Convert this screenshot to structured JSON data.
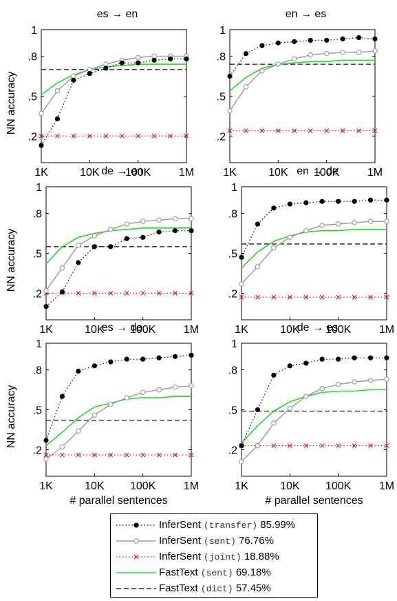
{
  "chart_data": {
    "type": "line",
    "x_categories": [
      "1K",
      "2K",
      "5K",
      "10K",
      "20K",
      "50K",
      "100K",
      "200K",
      "500K",
      "1M"
    ],
    "x_tick_labels": [
      "1K",
      "10K",
      "100K",
      "1M"
    ],
    "y_tick_labels": [
      "1",
      ".8",
      ".5",
      ".2"
    ],
    "ylim": [
      0,
      1
    ],
    "xlabel": "# parallel sentences",
    "ylabel": "NN accuracy",
    "legend_placement": "bottom-center",
    "colors": {
      "transfer": "#000000",
      "sent": "#999999",
      "joint": "#e0141e",
      "fasttext_sent": "#22dd22",
      "fasttext_dict": "#000000"
    },
    "legend": [
      {
        "key": "transfer",
        "name": "InferSent",
        "tag": "(transfer)",
        "value": "85.99%"
      },
      {
        "key": "sent",
        "name": "InferSent",
        "tag": "(sent)",
        "value": "76.76%"
      },
      {
        "key": "joint",
        "name": "InferSent",
        "tag": "(joint)",
        "value": "18.88%"
      },
      {
        "key": "fasttext_sent",
        "name": "FastText",
        "tag": "(sent)",
        "value": "69.18%"
      },
      {
        "key": "fasttext_dict",
        "name": "FastText",
        "tag": "(dict)",
        "value": "57.45%"
      }
    ],
    "panels": [
      {
        "title": "es → en",
        "series": {
          "transfer": [
            0.13,
            0.33,
            0.62,
            0.67,
            0.71,
            0.75,
            0.75,
            0.77,
            0.78,
            0.78
          ],
          "sent": [
            0.37,
            0.54,
            0.65,
            0.7,
            0.74,
            0.77,
            0.79,
            0.8,
            0.8,
            0.8
          ],
          "joint": [
            0.2,
            0.2,
            0.2,
            0.2,
            0.2,
            0.2,
            0.2,
            0.2,
            0.2,
            0.2
          ],
          "fasttext_sent": [
            0.51,
            0.6,
            0.66,
            0.7,
            0.72,
            0.73,
            0.74,
            0.74,
            0.74,
            0.74
          ],
          "fasttext_dict": 0.7
        }
      },
      {
        "title": "en → es",
        "series": {
          "transfer": [
            0.65,
            0.82,
            0.88,
            0.9,
            0.91,
            0.92,
            0.92,
            0.93,
            0.94,
            0.93
          ],
          "sent": [
            0.39,
            0.57,
            0.69,
            0.74,
            0.78,
            0.81,
            0.82,
            0.83,
            0.83,
            0.84
          ],
          "joint": [
            0.24,
            0.24,
            0.24,
            0.24,
            0.24,
            0.24,
            0.24,
            0.24,
            0.24,
            0.24
          ],
          "fasttext_sent": [
            0.54,
            0.64,
            0.71,
            0.74,
            0.75,
            0.76,
            0.76,
            0.77,
            0.77,
            0.77
          ],
          "fasttext_dict": 0.74
        }
      },
      {
        "title": "de → en",
        "series": {
          "transfer": [
            0.1,
            0.21,
            0.43,
            0.55,
            0.55,
            0.61,
            0.62,
            0.66,
            0.67,
            0.67
          ],
          "sent": [
            0.22,
            0.39,
            0.56,
            0.63,
            0.68,
            0.72,
            0.74,
            0.75,
            0.76,
            0.76
          ],
          "joint": [
            0.2,
            0.2,
            0.2,
            0.2,
            0.2,
            0.2,
            0.2,
            0.2,
            0.2,
            0.2
          ],
          "fasttext_sent": [
            0.42,
            0.55,
            0.62,
            0.65,
            0.67,
            0.68,
            0.69,
            0.69,
            0.69,
            0.69
          ],
          "fasttext_dict": 0.55
        }
      },
      {
        "title": "en → de",
        "series": {
          "transfer": [
            0.47,
            0.72,
            0.84,
            0.87,
            0.88,
            0.89,
            0.89,
            0.89,
            0.9,
            0.9
          ],
          "sent": [
            0.27,
            0.4,
            0.54,
            0.62,
            0.67,
            0.71,
            0.72,
            0.73,
            0.74,
            0.74
          ],
          "joint": [
            0.17,
            0.17,
            0.17,
            0.17,
            0.17,
            0.17,
            0.17,
            0.17,
            0.17,
            0.17
          ],
          "fasttext_sent": [
            0.39,
            0.51,
            0.59,
            0.63,
            0.66,
            0.67,
            0.67,
            0.68,
            0.68,
            0.68
          ],
          "fasttext_dict": 0.57
        }
      },
      {
        "title": "es → de",
        "series": {
          "transfer": [
            0.27,
            0.6,
            0.79,
            0.83,
            0.86,
            0.88,
            0.88,
            0.89,
            0.9,
            0.91
          ],
          "sent": [
            0.13,
            0.22,
            0.34,
            0.46,
            0.54,
            0.59,
            0.63,
            0.65,
            0.67,
            0.68
          ],
          "joint": [
            0.16,
            0.16,
            0.16,
            0.16,
            0.16,
            0.16,
            0.16,
            0.16,
            0.16,
            0.16
          ],
          "fasttext_sent": [
            0.23,
            0.33,
            0.44,
            0.52,
            0.55,
            0.58,
            0.59,
            0.59,
            0.6,
            0.6
          ],
          "fasttext_dict": 0.42
        }
      },
      {
        "title": "de → es",
        "series": {
          "transfer": [
            0.23,
            0.5,
            0.76,
            0.83,
            0.85,
            0.88,
            0.88,
            0.89,
            0.89,
            0.89
          ],
          "sent": [
            0.11,
            0.23,
            0.4,
            0.51,
            0.6,
            0.66,
            0.69,
            0.71,
            0.72,
            0.73
          ],
          "joint": [
            0.23,
            0.23,
            0.23,
            0.23,
            0.23,
            0.23,
            0.23,
            0.23,
            0.23,
            0.23
          ],
          "fasttext_sent": [
            0.25,
            0.38,
            0.49,
            0.56,
            0.6,
            0.63,
            0.64,
            0.64,
            0.65,
            0.65
          ],
          "fasttext_dict": 0.49
        }
      }
    ]
  }
}
